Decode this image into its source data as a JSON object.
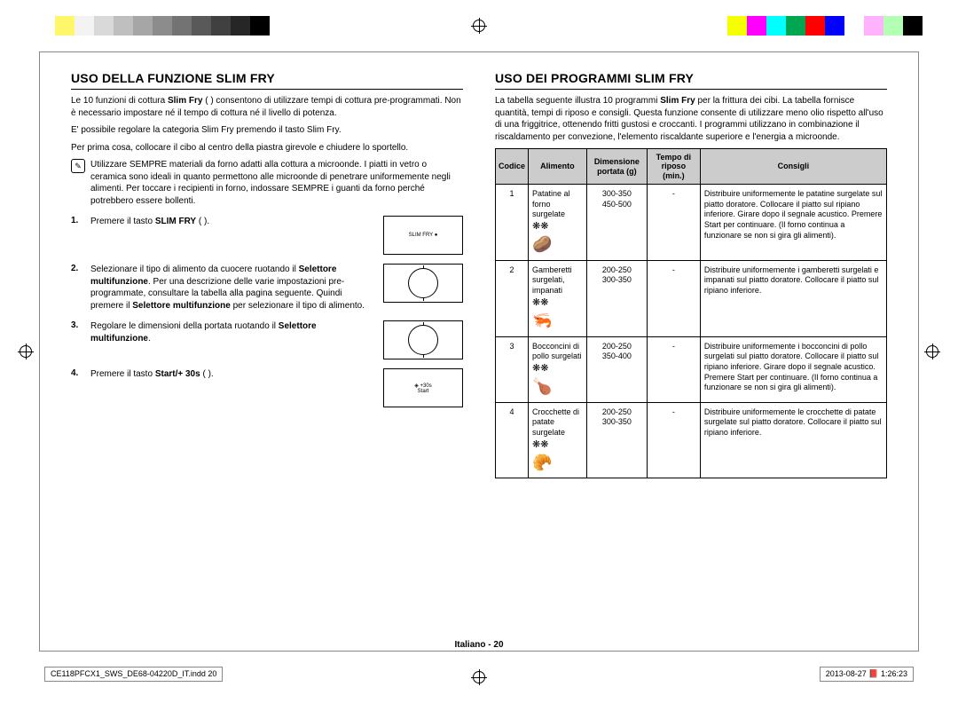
{
  "colorbar_left": [
    "#ffffff",
    "#fff66a",
    "#f3f3f3",
    "#d9d9d9",
    "#bfbfbf",
    "#a6a6a6",
    "#8c8c8c",
    "#737373",
    "#595959",
    "#404040",
    "#262626",
    "#000000"
  ],
  "colorbar_right": [
    "#f6ff00",
    "#ff00ff",
    "#00ffff",
    "#00a651",
    "#ff0000",
    "#0000ff",
    "#ffffff",
    "#ffb3ff",
    "#b3ffb3",
    "#000000"
  ],
  "left": {
    "heading": "USO DELLA FUNZIONE SLIM FRY",
    "intro1_a": "Le 10 funzioni di cottura ",
    "intro1_b": "Slim Fry",
    "intro1_c": " ( ) consentono di utilizzare tempi di cottura pre-programmati. Non è necessario impostare né il tempo di cottura né il livello di potenza.",
    "intro2": "E' possibile regolare la categoria Slim Fry premendo il tasto Slim Fry.",
    "intro3": "Per prima cosa, collocare il cibo al centro della piastra girevole e chiudere lo sportello.",
    "note": "Utilizzare SEMPRE materiali da forno adatti alla cottura a microonde. I piatti in vetro o ceramica sono ideali in quanto permettono alle microonde di penetrare uniformemente negli alimenti. Per toccare i recipienti in forno, indossare SEMPRE i guanti da forno perché potrebbero essere bollenti.",
    "steps": [
      {
        "num": "1.",
        "html": "Premere il tasto <b>SLIM FRY</b> ( ).",
        "img_label": "SLIM FRY  ●"
      },
      {
        "num": "2.",
        "html": "Selezionare il tipo di alimento da cuocere ruotando il <b>Selettore multifunzione</b>. Per una descrizione delle varie impostazioni pre-programmate, consultare la tabella alla pagina seguente. Quindi premere il <b>Selettore multifunzione</b> per selezionare il tipo di alimento.",
        "img_type": "dial"
      },
      {
        "num": "3.",
        "html": "Regolare le dimensioni della portata ruotando il <b>Selettore multifunzione</b>.",
        "img_type": "dial"
      },
      {
        "num": "4.",
        "html": "Premere il tasto <b>Start/+ 30s</b> ( ).",
        "img_label": "◈ +30s\nStart"
      }
    ]
  },
  "right": {
    "heading": "USO DEI PROGRAMMI SLIM FRY",
    "intro_a": "La tabella seguente illustra 10 programmi ",
    "intro_b": "Slim Fry",
    "intro_c": " per la frittura dei cibi. La tabella fornisce quantità, tempi di riposo e consigli. Questa funzione consente di utilizzare meno olio rispetto all'uso di una friggitrice, ottenendo fritti gustosi e croccanti. I programmi utilizzano in combinazione il riscaldamento per convezione, l'elemento riscaldante superiore e l'energia a microonde.",
    "headers": [
      "Codice",
      "Alimento",
      "Dimensione portata (g)",
      "Tempo di riposo (min.)",
      "Consigli"
    ],
    "rows": [
      {
        "code": "1",
        "food": "Patatine al forno surgelate",
        "icon": "🥔",
        "dim": "300-350\n450-500",
        "tempo": "-",
        "tips": "Distribuire uniformemente le patatine surgelate sul piatto doratore. Collocare il piatto sul ripiano inferiore. Girare dopo il segnale acustico. Premere Start per continuare. (Il forno continua a funzionare se non si gira gli alimenti)."
      },
      {
        "code": "2",
        "food": "Gamberetti surgelati, impanati",
        "icon": "🦐",
        "dim": "200-250\n300-350",
        "tempo": "-",
        "tips": "Distribuire uniformemente i gamberetti surgelati e impanati sul piatto doratore. Collocare il piatto sul ripiano inferiore."
      },
      {
        "code": "3",
        "food": "Bocconcini di pollo surgelati",
        "icon": "🍗",
        "dim": "200-250\n350-400",
        "tempo": "-",
        "tips": "Distribuire uniformemente i bocconcini di pollo surgelati sul piatto doratore. Collocare il piatto sul ripiano inferiore. Girare dopo il segnale acustico. Premere Start per continuare. (Il forno continua a funzionare se non si gira gli alimenti)."
      },
      {
        "code": "4",
        "food": "Crocchette di patate surgelate",
        "icon": "🥐",
        "dim": "200-250\n300-350",
        "tempo": "-",
        "tips": "Distribuire uniformemente le crocchette di patate surgelate sul piatto doratore. Collocare il piatto sul ripiano inferiore."
      }
    ]
  },
  "footer_page": "Italiano - 20",
  "footer_left": "CE118PFCX1_SWS_DE68-04220D_IT.indd   20",
  "footer_right": "2013-08-27   📕 1:26:23"
}
